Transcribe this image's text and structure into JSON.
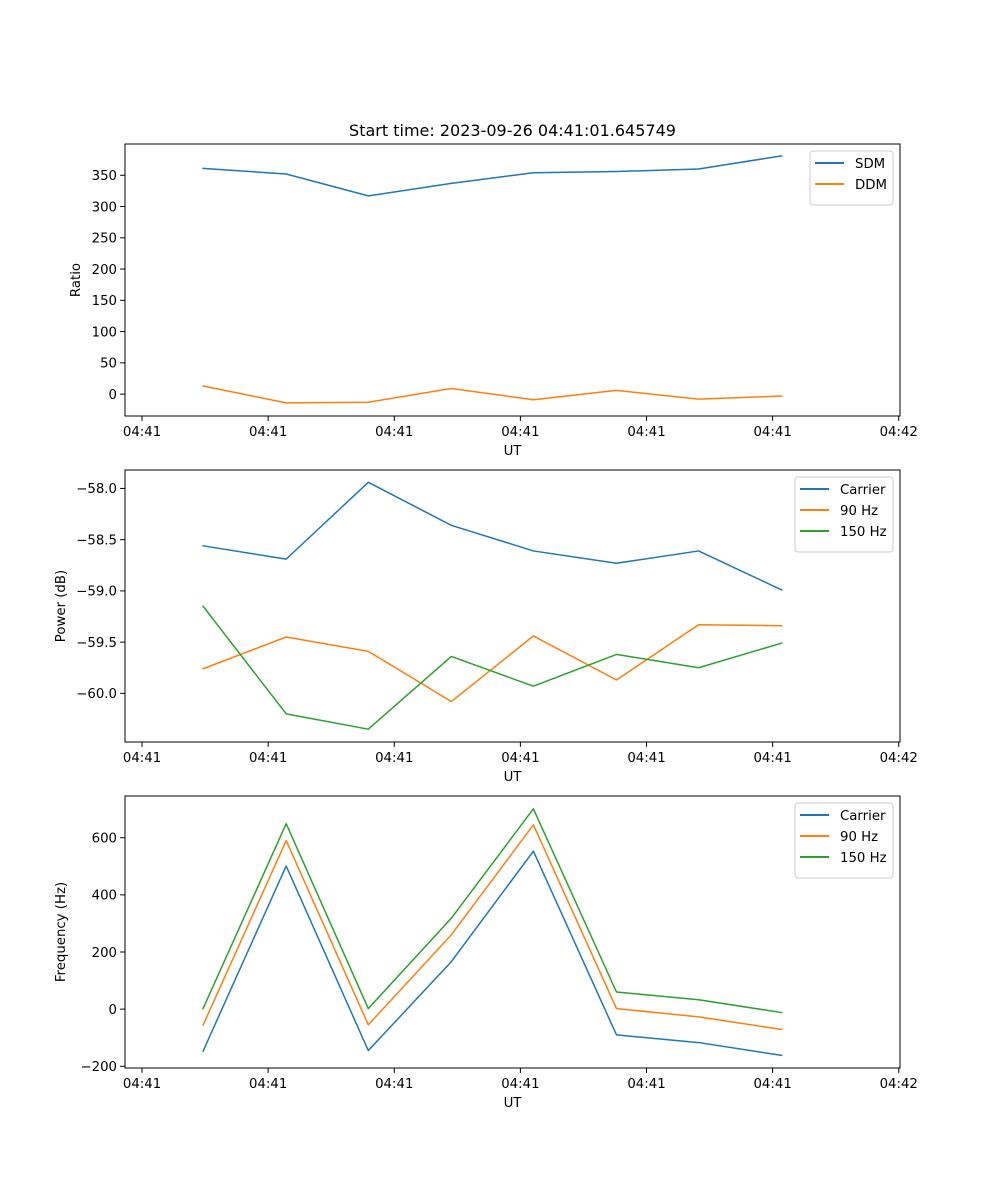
{
  "figure": {
    "title": "Start time: 2023-09-26 04:41:01.645749"
  },
  "chart_data": [
    {
      "type": "line",
      "title": "Start time: 2023-09-26 04:41:01.645749",
      "xlabel": "UT",
      "ylabel": "Ratio",
      "x_units": "seconds after 04:41:00",
      "x": [
        4.84,
        11.43,
        17.94,
        24.52,
        31.03,
        37.62,
        44.13,
        50.71
      ],
      "xlim": [
        -1.35,
        60.1
      ],
      "xticks": [
        0,
        10,
        20,
        30,
        40,
        50,
        60
      ],
      "xtick_labels": [
        "04:41",
        "04:41",
        "04:41",
        "04:41",
        "04:41",
        "04:41",
        "04:42"
      ],
      "ylim": [
        -35,
        400
      ],
      "yticks": [
        0,
        50,
        100,
        150,
        200,
        250,
        300,
        350
      ],
      "ytick_labels": [
        "0",
        "50",
        "100",
        "150",
        "200",
        "250",
        "300",
        "350"
      ],
      "grid": false,
      "legend_position": "top-right",
      "series": [
        {
          "name": "SDM",
          "color": "#1f77b4",
          "values": [
            361,
            352,
            317,
            337,
            354,
            356,
            360,
            381
          ]
        },
        {
          "name": "DDM",
          "color": "#ff7f0e",
          "values": [
            13,
            -14,
            -13,
            9,
            -9,
            6,
            -8,
            -3
          ]
        }
      ]
    },
    {
      "type": "line",
      "title": "",
      "xlabel": "UT",
      "ylabel": "Power (dB)",
      "x_units": "seconds after 04:41:00",
      "x": [
        4.84,
        11.43,
        17.94,
        24.52,
        31.03,
        37.62,
        44.13,
        50.71
      ],
      "xlim": [
        -1.35,
        60.1
      ],
      "xticks": [
        0,
        10,
        20,
        30,
        40,
        50,
        60
      ],
      "xtick_labels": [
        "04:41",
        "04:41",
        "04:41",
        "04:41",
        "04:41",
        "04:41",
        "04:42"
      ],
      "ylim": [
        -60.475,
        -57.82
      ],
      "yticks": [
        -60.0,
        -59.5,
        -59.0,
        -58.5,
        -58.0
      ],
      "ytick_labels": [
        "−60.0",
        "−59.5",
        "−59.0",
        "−58.5",
        "−58.0"
      ],
      "grid": false,
      "legend_position": "top-right",
      "series": [
        {
          "name": "Carrier",
          "color": "#1f77b4",
          "values": [
            -58.56,
            -58.69,
            -57.94,
            -58.36,
            -58.61,
            -58.73,
            -58.61,
            -58.99
          ]
        },
        {
          "name": "90 Hz",
          "color": "#ff7f0e",
          "values": [
            -59.76,
            -59.45,
            -59.59,
            -60.08,
            -59.44,
            -59.87,
            -59.33,
            -59.34
          ]
        },
        {
          "name": "150 Hz",
          "color": "#2ca02c",
          "values": [
            -59.15,
            -60.2,
            -60.35,
            -59.64,
            -59.93,
            -59.62,
            -59.75,
            -59.51
          ]
        }
      ]
    },
    {
      "type": "line",
      "title": "",
      "xlabel": "UT",
      "ylabel": "Frequency (Hz)",
      "x_units": "seconds after 04:41:00",
      "x": [
        4.84,
        11.43,
        17.94,
        24.52,
        31.03,
        37.62,
        44.13,
        50.71
      ],
      "xlim": [
        -1.35,
        60.1
      ],
      "xticks": [
        0,
        10,
        20,
        30,
        40,
        50,
        60
      ],
      "xtick_labels": [
        "04:41",
        "04:41",
        "04:41",
        "04:41",
        "04:41",
        "04:41",
        "04:42"
      ],
      "ylim": [
        -206,
        746
      ],
      "yticks": [
        -200,
        0,
        200,
        400,
        600
      ],
      "ytick_labels": [
        "−200",
        "0",
        "200",
        "400",
        "600"
      ],
      "grid": false,
      "legend_position": "top-right",
      "series": [
        {
          "name": "Carrier",
          "color": "#1f77b4",
          "values": [
            -147,
            501,
            -145,
            166,
            553,
            -90,
            -117,
            -162
          ]
        },
        {
          "name": "90 Hz",
          "color": "#ff7f0e",
          "values": [
            -56,
            590,
            -55,
            260,
            645,
            2,
            -27,
            -71
          ]
        },
        {
          "name": "150 Hz",
          "color": "#2ca02c",
          "values": [
            2,
            649,
            2,
            318,
            701,
            60,
            33,
            -12
          ]
        }
      ]
    }
  ]
}
